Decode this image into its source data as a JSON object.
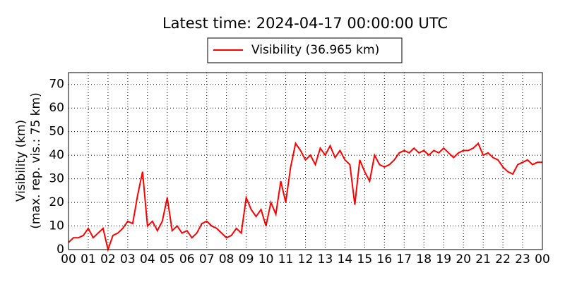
{
  "chart_data": {
    "type": "line",
    "title": "Latest time: 2024-04-17 00:00:00 UTC",
    "y_label": [
      "Visibility (km)",
      "(max. rep. vis.: 75 km)"
    ],
    "xlim": [
      0,
      24
    ],
    "ylim": [
      0,
      75
    ],
    "grid": true,
    "legend": "top",
    "xticks": [
      {
        "value": 0,
        "label": "00"
      },
      {
        "value": 1,
        "label": "01"
      },
      {
        "value": 2,
        "label": "02"
      },
      {
        "value": 3,
        "label": "03"
      },
      {
        "value": 4,
        "label": "04"
      },
      {
        "value": 5,
        "label": "05"
      },
      {
        "value": 6,
        "label": "06"
      },
      {
        "value": 7,
        "label": "07"
      },
      {
        "value": 8,
        "label": "08"
      },
      {
        "value": 9,
        "label": "09"
      },
      {
        "value": 10,
        "label": "10"
      },
      {
        "value": 11,
        "label": "11"
      },
      {
        "value": 12,
        "label": "12"
      },
      {
        "value": 13,
        "label": "13"
      },
      {
        "value": 14,
        "label": "14"
      },
      {
        "value": 15,
        "label": "15"
      },
      {
        "value": 16,
        "label": "16"
      },
      {
        "value": 17,
        "label": "17"
      },
      {
        "value": 18,
        "label": "18"
      },
      {
        "value": 19,
        "label": "19"
      },
      {
        "value": 20,
        "label": "20"
      },
      {
        "value": 21,
        "label": "21"
      },
      {
        "value": 22,
        "label": "22"
      },
      {
        "value": 23,
        "label": "23"
      },
      {
        "value": 24,
        "label": "00"
      }
    ],
    "yticks": [
      0,
      10,
      20,
      30,
      40,
      50,
      60,
      70
    ],
    "x": [
      0,
      0.25,
      0.5,
      0.75,
      1,
      1.25,
      1.5,
      1.75,
      2,
      2.25,
      2.5,
      2.75,
      3,
      3.25,
      3.5,
      3.75,
      4,
      4.25,
      4.5,
      4.75,
      5,
      5.25,
      5.5,
      5.75,
      6,
      6.25,
      6.5,
      6.75,
      7,
      7.25,
      7.5,
      7.75,
      8,
      8.25,
      8.5,
      8.75,
      9,
      9.25,
      9.5,
      9.75,
      10,
      10.25,
      10.5,
      10.75,
      11,
      11.25,
      11.5,
      11.75,
      12,
      12.25,
      12.5,
      12.75,
      13,
      13.25,
      13.5,
      13.75,
      14,
      14.25,
      14.5,
      14.75,
      15,
      15.25,
      15.5,
      15.75,
      16,
      16.25,
      16.5,
      16.75,
      17,
      17.25,
      17.5,
      17.75,
      18,
      18.25,
      18.5,
      18.75,
      19,
      19.25,
      19.5,
      19.75,
      20,
      20.25,
      20.5,
      20.75,
      21,
      21.25,
      21.5,
      21.75,
      22,
      22.25,
      22.5,
      22.75,
      23,
      23.25,
      23.5,
      23.75,
      24
    ],
    "series": [
      {
        "name": "Visibility (36.965 km)",
        "color": "#ff0000",
        "values": [
          3,
          5,
          5,
          6,
          9,
          5,
          7,
          9,
          0,
          6,
          7,
          9,
          12,
          11,
          23,
          33,
          10,
          12,
          8,
          12,
          22,
          8,
          10,
          7,
          8,
          5,
          7,
          11,
          12,
          10,
          9,
          7,
          5,
          6,
          9,
          7,
          22,
          17,
          14,
          17,
          10,
          20,
          15,
          29,
          20,
          35,
          45,
          42,
          38,
          40,
          36,
          43,
          40,
          44,
          39,
          42,
          38,
          36,
          19,
          38,
          33,
          29,
          40,
          36,
          35,
          36,
          38,
          41,
          42,
          41,
          43,
          41,
          42,
          40,
          42,
          41,
          43,
          41,
          39,
          41,
          42,
          42,
          43,
          45,
          40,
          41,
          39,
          38,
          35,
          33,
          32,
          36,
          37,
          38,
          36,
          37,
          37
        ]
      }
    ]
  }
}
